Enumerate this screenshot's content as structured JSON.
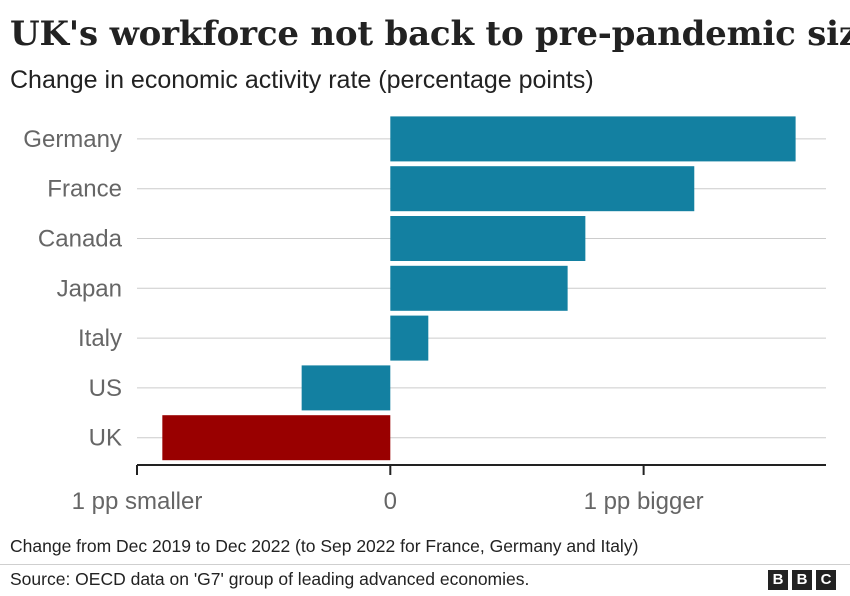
{
  "title": "UK's workforce not back to pre-pandemic size",
  "subtitle": "Change in economic activity rate (percentage points)",
  "note": "Change from Dec 2019 to Dec 2022 (to Sep 2022 for France, Germany and Italy)",
  "source": "Source: OECD data on 'G7' group of leading advanced economies.",
  "logo": [
    "B",
    "B",
    "C"
  ],
  "colors": {
    "default_bar": "#1380a1",
    "highlight_bar": "#990000",
    "gridline": "#cccccc",
    "axis": "#222222",
    "category_text": "#666666"
  },
  "chart_data": {
    "type": "bar",
    "orientation": "horizontal",
    "categories": [
      "Germany",
      "France",
      "Canada",
      "Japan",
      "Italy",
      "US",
      "UK"
    ],
    "values": [
      1.6,
      1.2,
      0.77,
      0.7,
      0.15,
      -0.35,
      -0.9
    ],
    "highlight": [
      "UK"
    ],
    "xlim": [
      -1.0,
      1.72
    ],
    "x_ticks": [
      {
        "value": -1,
        "label": "1 pp smaller"
      },
      {
        "value": 0,
        "label": "0"
      },
      {
        "value": 1,
        "label": "1 pp bigger"
      }
    ],
    "grid": true
  }
}
